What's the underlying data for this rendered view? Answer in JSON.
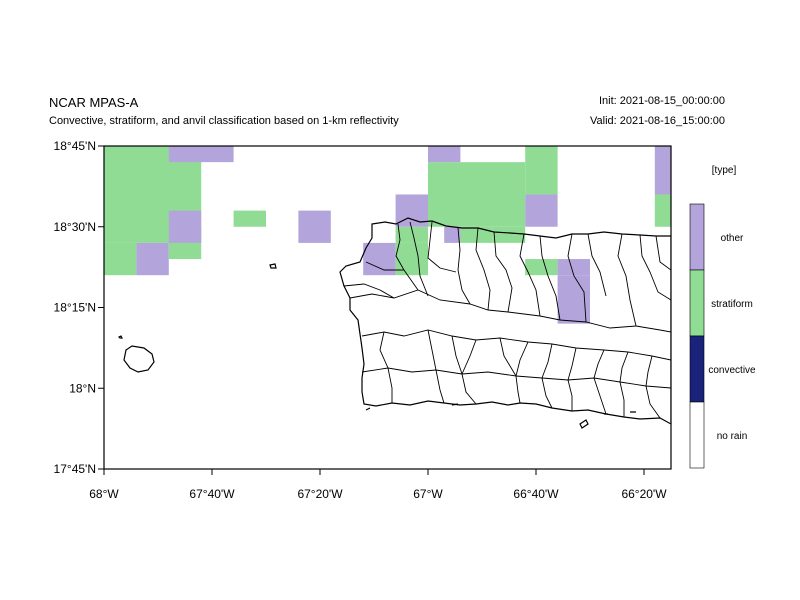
{
  "header": {
    "title": "NCAR MPAS-A",
    "subtitle": "Convective, stratiform, and anvil classification based on 1-km reflectivity",
    "init": "Init: 2021-08-15_00:00:00",
    "valid": "Valid: 2021-08-16_15:00:00"
  },
  "map": {
    "lon_range": [
      -68.0,
      -66.25
    ],
    "lat_range": [
      17.75,
      18.75
    ],
    "x_ticks": [
      {
        "lon": -68.0,
        "label": "68°W"
      },
      {
        "lon": -67.6667,
        "label": "67°40'W"
      },
      {
        "lon": -67.3333,
        "label": "67°20'W"
      },
      {
        "lon": -67.0,
        "label": "67°W"
      },
      {
        "lon": -66.6667,
        "label": "66°40'W"
      },
      {
        "lon": -66.3333,
        "label": "66°20'W"
      }
    ],
    "y_ticks": [
      {
        "lat": 18.75,
        "label": "18°45'N"
      },
      {
        "lat": 18.5,
        "label": "18°30'N"
      },
      {
        "lat": 18.25,
        "label": "18°15'N"
      },
      {
        "lat": 18.0,
        "label": "18°N"
      },
      {
        "lat": 17.75,
        "label": "17°45'N"
      }
    ]
  },
  "legend": {
    "title": "[type]",
    "entries": [
      {
        "label": "other",
        "color": "#b3a5dc"
      },
      {
        "label": "stratiform",
        "color": "#90dc94"
      },
      {
        "label": "convective",
        "color": "#1a237a"
      },
      {
        "label": "no rain",
        "color": "#ffffff"
      }
    ]
  },
  "classification_cells": [
    {
      "lon": [
        -68.0,
        -67.7
      ],
      "lat": [
        18.45,
        18.75
      ],
      "type": "stratiform"
    },
    {
      "lon": [
        -68.0,
        -67.9
      ],
      "lat": [
        18.35,
        18.45
      ],
      "type": "stratiform"
    },
    {
      "lon": [
        -67.9,
        -67.8
      ],
      "lat": [
        18.35,
        18.45
      ],
      "type": "other"
    },
    {
      "lon": [
        -67.8,
        -67.7
      ],
      "lat": [
        18.4,
        18.45
      ],
      "type": "stratiform"
    },
    {
      "lon": [
        -67.8,
        -67.7
      ],
      "lat": [
        18.5,
        18.45
      ],
      "type": "stratiform"
    },
    {
      "lon": [
        -67.8,
        -67.6
      ],
      "lat": [
        18.7,
        18.75
      ],
      "type": "other"
    },
    {
      "lon": [
        -67.6,
        -67.5
      ],
      "lat": [
        18.5,
        18.55
      ],
      "type": "stratiform"
    },
    {
      "lon": [
        -67.8,
        -67.7
      ],
      "lat": [
        18.45,
        18.55
      ],
      "type": "other"
    },
    {
      "lon": [
        -67.4,
        -67.3
      ],
      "lat": [
        18.45,
        18.55
      ],
      "type": "other"
    },
    {
      "lon": [
        -67.2,
        -67.1
      ],
      "lat": [
        18.35,
        18.45
      ],
      "type": "other"
    },
    {
      "lon": [
        -67.1,
        -67.0
      ],
      "lat": [
        18.35,
        18.45
      ],
      "type": "stratiform"
    },
    {
      "lon": [
        -67.1,
        -67.0
      ],
      "lat": [
        18.45,
        18.5
      ],
      "type": "stratiform"
    },
    {
      "lon": [
        -67.1,
        -67.0
      ],
      "lat": [
        18.5,
        18.6
      ],
      "type": "other"
    },
    {
      "lon": [
        -67.0,
        -66.7
      ],
      "lat": [
        18.5,
        18.7
      ],
      "type": "stratiform"
    },
    {
      "lon": [
        -67.0,
        -66.9
      ],
      "lat": [
        18.7,
        18.75
      ],
      "type": "other"
    },
    {
      "lon": [
        -66.7,
        -66.6
      ],
      "lat": [
        18.6,
        18.75
      ],
      "type": "stratiform"
    },
    {
      "lon": [
        -66.7,
        -66.6
      ],
      "lat": [
        18.5,
        18.6
      ],
      "type": "other"
    },
    {
      "lon": [
        -66.9,
        -66.8
      ],
      "lat": [
        18.45,
        18.5
      ],
      "type": "stratiform"
    },
    {
      "lon": [
        -66.95,
        -66.9
      ],
      "lat": [
        18.45,
        18.5
      ],
      "type": "other"
    },
    {
      "lon": [
        -66.8,
        -66.7
      ],
      "lat": [
        18.45,
        18.5
      ],
      "type": "stratiform"
    },
    {
      "lon": [
        -66.7,
        -66.6
      ],
      "lat": [
        18.35,
        18.4
      ],
      "type": "stratiform"
    },
    {
      "lon": [
        -66.6,
        -66.5
      ],
      "lat": [
        18.35,
        18.4
      ],
      "type": "other"
    },
    {
      "lon": [
        -66.6,
        -66.5
      ],
      "lat": [
        18.2,
        18.35
      ],
      "type": "other"
    },
    {
      "lon": [
        -66.3,
        -66.25
      ],
      "lat": [
        18.5,
        18.6
      ],
      "type": "stratiform"
    },
    {
      "lon": [
        -66.3,
        -66.25
      ],
      "lat": [
        18.6,
        18.75
      ],
      "type": "other"
    }
  ]
}
